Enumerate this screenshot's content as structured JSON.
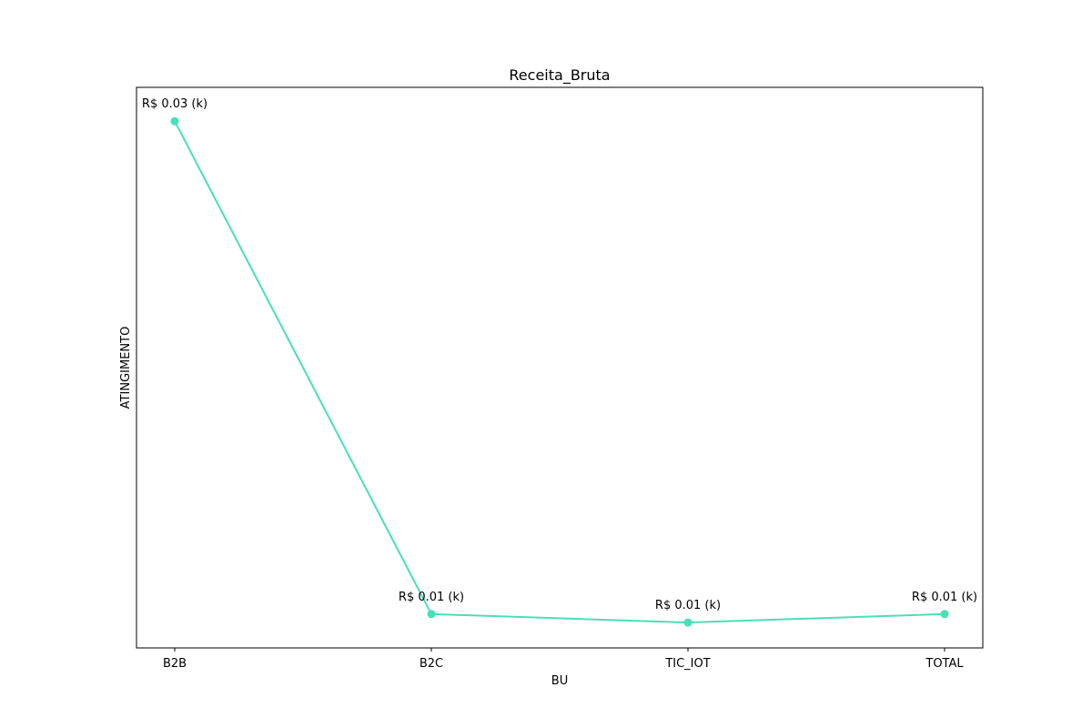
{
  "chart_data": {
    "type": "line",
    "title": "Receita_Bruta",
    "xlabel": "BU",
    "ylabel": "ATINGIMENTO",
    "categories": [
      "B2B",
      "B2C",
      "TIC_IOT",
      "TOTAL"
    ],
    "series": [
      {
        "values": [
          0.0318,
          0.0085,
          0.0081,
          0.0085
        ],
        "data_labels": [
          "R$ 0.03 (k)",
          "R$ 0.01 (k)",
          "R$ 0.01 (k)",
          "R$ 0.01 (k)"
        ],
        "color": "#48e0b8"
      }
    ],
    "ylim": [
      0.0069,
      0.0334
    ],
    "y_ticks_visible": false,
    "grid": false,
    "legend": "none"
  }
}
